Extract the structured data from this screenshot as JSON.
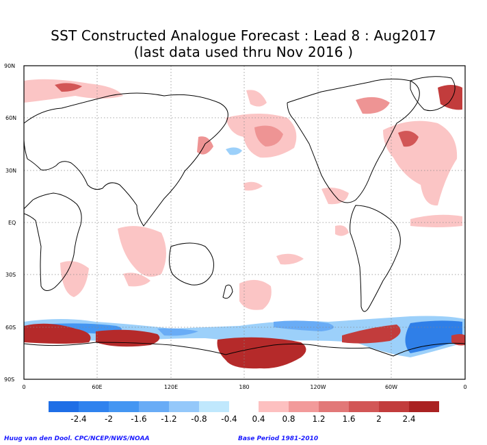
{
  "title": {
    "line1": "SST Constructed Analogue Forecast : Lead 8 : Aug2017",
    "line2": "(last data used thru Nov 2016 )"
  },
  "map": {
    "lat_labels": [
      "90N",
      "60N",
      "30N",
      "EQ",
      "30S",
      "60S",
      "90S"
    ],
    "lon_labels": [
      "0",
      "60E",
      "120E",
      "180",
      "120W",
      "60W",
      "0"
    ],
    "gridlines": "dotted"
  },
  "legend": {
    "values": [
      "-2.4",
      "-2",
      "-1.6",
      "-1.2",
      "-0.8",
      "-0.4",
      "0.4",
      "0.8",
      "1.2",
      "1.6",
      "2",
      "2.4"
    ],
    "negative_colors": [
      "#1e6ee6",
      "#2f82ee",
      "#4496f2",
      "#69acf6",
      "#94c8fa",
      "#c0e8fd"
    ],
    "positive_colors": [
      "#fdc0c0",
      "#f29a9a",
      "#e27878",
      "#d25656",
      "#c23c3c",
      "#aa2222"
    ]
  },
  "colors": {
    "land_outline": "#000000",
    "grid": "#888888",
    "warm_light": "#fbc5c5",
    "warm_mid": "#ee9494",
    "warm_dark": "#b52a2a",
    "cool_light": "#9cd0fa",
    "cool_dark": "#2f7fe8"
  },
  "credits": {
    "left": "Huug van den Dool. CPC/NCEP/NWS/NOAA",
    "right": "Base Period 1981-2010"
  }
}
